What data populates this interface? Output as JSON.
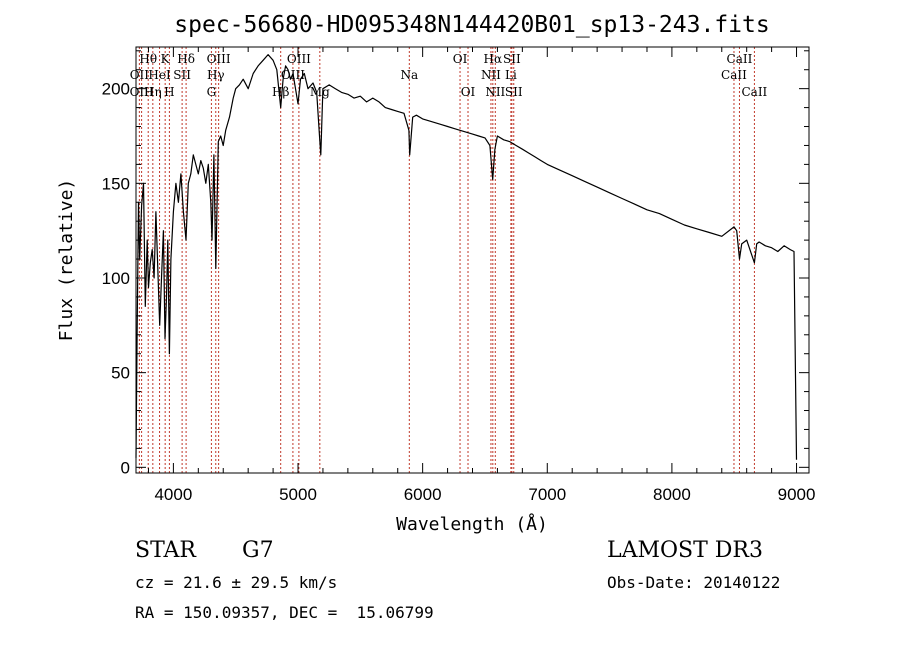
{
  "chart_data": {
    "type": "line",
    "title": "spec-56680-HD095348N144420B01_sp13-243.fits",
    "xlabel": "Wavelength (Å)",
    "ylabel": "Flux (relative)",
    "xlim": [
      3700,
      9100
    ],
    "ylim": [
      -3,
      222
    ],
    "grid": false,
    "x_ticks": [
      4000,
      5000,
      6000,
      7000,
      8000,
      9000
    ],
    "x_tick_labels": [
      "4000",
      "5000",
      "6000",
      "7000",
      "8000",
      "9000"
    ],
    "y_ticks": [
      0,
      50,
      100,
      150,
      200
    ],
    "y_tick_labels": [
      "0",
      "50",
      "100",
      "150",
      "200"
    ],
    "line_color": "#000000",
    "marker_color": "#c0392b",
    "series": [
      {
        "name": "Flux",
        "x": [
          3700,
          3710,
          3720,
          3730,
          3745,
          3760,
          3775,
          3790,
          3800,
          3815,
          3830,
          3845,
          3860,
          3875,
          3890,
          3905,
          3920,
          3933,
          3945,
          3955,
          3968,
          3980,
          4000,
          4020,
          4040,
          4060,
          4080,
          4101,
          4120,
          4140,
          4160,
          4180,
          4200,
          4220,
          4240,
          4260,
          4280,
          4300,
          4310,
          4325,
          4340,
          4360,
          4380,
          4400,
          4420,
          4450,
          4480,
          4500,
          4530,
          4560,
          4600,
          4640,
          4680,
          4720,
          4760,
          4800,
          4830,
          4861,
          4880,
          4900,
          4920,
          4940,
          4960,
          4980,
          5000,
          5020,
          5050,
          5080,
          5120,
          5150,
          5172,
          5183,
          5200,
          5250,
          5300,
          5350,
          5400,
          5450,
          5500,
          5550,
          5600,
          5650,
          5700,
          5750,
          5800,
          5850,
          5890,
          5896,
          5920,
          5950,
          6000,
          6050,
          6100,
          6150,
          6200,
          6250,
          6300,
          6350,
          6400,
          6450,
          6500,
          6540,
          6562,
          6580,
          6600,
          6650,
          6700,
          6750,
          6800,
          6850,
          6900,
          6950,
          7000,
          7100,
          7200,
          7300,
          7400,
          7500,
          7600,
          7700,
          7800,
          7900,
          8000,
          8100,
          8200,
          8300,
          8400,
          8498,
          8520,
          8542,
          8560,
          8600,
          8662,
          8680,
          8700,
          8750,
          8800,
          8850,
          8900,
          8950,
          8980,
          9000
        ],
        "values": [
          5,
          75,
          140,
          110,
          138,
          150,
          85,
          120,
          95,
          108,
          115,
          100,
          135,
          105,
          75,
          100,
          125,
          68,
          90,
          120,
          60,
          110,
          135,
          150,
          140,
          155,
          135,
          120,
          150,
          155,
          165,
          160,
          155,
          162,
          158,
          150,
          160,
          140,
          120,
          165,
          105,
          172,
          175,
          170,
          178,
          185,
          195,
          200,
          202,
          205,
          200,
          208,
          212,
          215,
          218,
          215,
          210,
          190,
          205,
          212,
          210,
          205,
          208,
          200,
          192,
          205,
          208,
          200,
          203,
          198,
          175,
          165,
          200,
          202,
          200,
          198,
          197,
          195,
          196,
          193,
          195,
          193,
          190,
          189,
          188,
          187,
          178,
          165,
          185,
          186,
          184,
          183,
          182,
          181,
          180,
          179,
          178,
          177,
          176,
          175,
          174,
          170,
          152,
          168,
          175,
          173,
          172,
          170,
          168,
          166,
          164,
          162,
          160,
          157,
          154,
          151,
          148,
          145,
          142,
          139,
          136,
          134,
          131,
          128,
          126,
          124,
          122,
          127,
          125,
          110,
          118,
          120,
          108,
          118,
          119,
          117,
          116,
          114,
          117,
          115,
          114,
          4
        ]
      }
    ],
    "lines": [
      {
        "name": "Hθ",
        "x": 3798,
        "row": 1
      },
      {
        "name": "OII",
        "x": 3727,
        "row": 2
      },
      {
        "name": "OIII",
        "x": 3745,
        "row": 3
      },
      {
        "name": "K",
        "x": 3934,
        "row": 1
      },
      {
        "name": "HeI",
        "x": 3889,
        "row": 2
      },
      {
        "name": "Hη",
        "x": 3835,
        "row": 3
      },
      {
        "name": "Hδ",
        "x": 4102,
        "row": 1
      },
      {
        "name": "SII",
        "x": 4070,
        "row": 2
      },
      {
        "name": "H",
        "x": 3968,
        "row": 3
      },
      {
        "name": "OIII",
        "x": 4363,
        "row": 1
      },
      {
        "name": "Hγ",
        "x": 4340,
        "row": 2
      },
      {
        "name": "G",
        "x": 4305,
        "row": 3
      },
      {
        "name": "OIII",
        "x": 5007,
        "row": 1
      },
      {
        "name": "OIII",
        "x": 4959,
        "row": 2
      },
      {
        "name": "Hβ",
        "x": 4861,
        "row": 3
      },
      {
        "name": "Mg",
        "x": 5175,
        "row": 3
      },
      {
        "name": "Na",
        "x": 5893,
        "row": 2
      },
      {
        "name": "OI",
        "x": 6300,
        "row": 1
      },
      {
        "name": "OI",
        "x": 6364,
        "row": 3
      },
      {
        "name": "Hα",
        "x": 6563,
        "row": 1
      },
      {
        "name": "NII",
        "x": 6548,
        "row": 2
      },
      {
        "name": "NII",
        "x": 6583,
        "row": 3
      },
      {
        "name": "SII",
        "x": 6716,
        "row": 1
      },
      {
        "name": "Li",
        "x": 6708,
        "row": 2
      },
      {
        "name": "SII",
        "x": 6731,
        "row": 3
      },
      {
        "name": "CaII",
        "x": 8542,
        "row": 1
      },
      {
        "name": "CaII",
        "x": 8498,
        "row": 2
      },
      {
        "name": "CaII",
        "x": 8662,
        "row": 3
      }
    ]
  },
  "info": {
    "object_class": "STAR",
    "subclass": "G7",
    "survey": "LAMOST DR3",
    "redshift": "cz = 21.6 ± 29.5 km/s",
    "obs_date": "Obs-Date: 20140122",
    "coords": "RA = 150.09357, DEC =  15.06799"
  }
}
